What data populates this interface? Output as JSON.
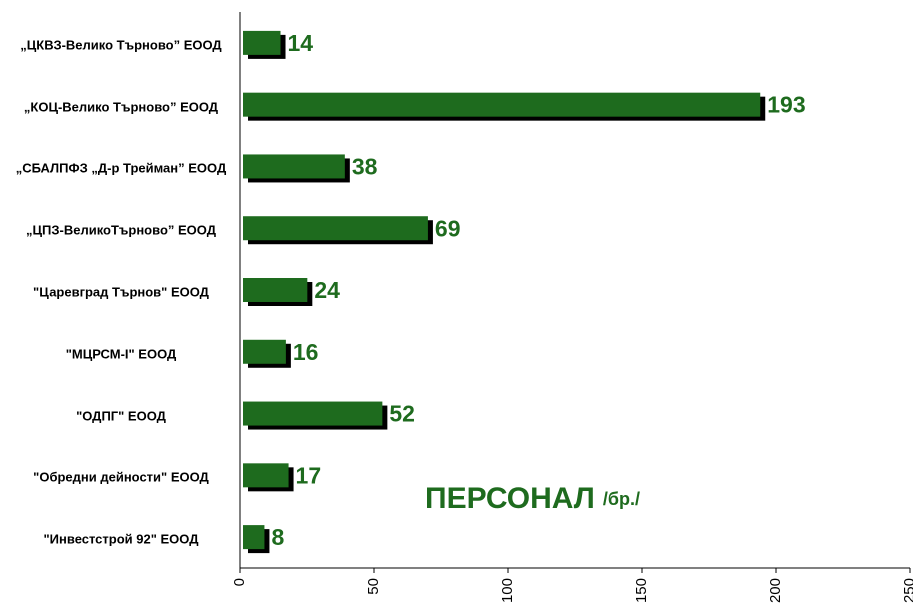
{
  "chart_data": {
    "type": "barh",
    "title": "ПЕРСОНАЛ",
    "title_unit": "/бр./",
    "categories": [
      "„ЦКВЗ-Велико Търново” ЕООД",
      "„КОЦ-Велико Търново” ЕООД",
      "„СБАЛПФЗ „Д-р Трейман” ЕООД",
      "„ЦПЗ-ВеликоТърново” ЕООД",
      "\"Царевград Търнов\" ЕООД",
      "\"МЦРСМ-I\" ЕООД",
      "\"ОДПГ\" ЕООД",
      "\"Обредни дейности\" ЕООД",
      "\"Инвестстрой 92\" ЕООД"
    ],
    "values": [
      14,
      193,
      38,
      69,
      24,
      16,
      52,
      17,
      8
    ],
    "color": "#1e6b1e",
    "shadow_color": "#000000",
    "label_color": "#1e6b1e",
    "xlim": [
      0,
      250
    ],
    "xticks": [
      0,
      50,
      100,
      150,
      200,
      250
    ]
  }
}
